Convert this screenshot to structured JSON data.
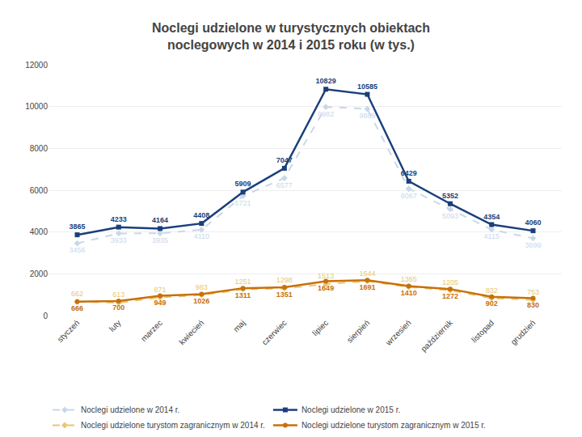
{
  "chart_data": {
    "type": "line",
    "title": "Noclegi udzielone w turystycznych obiektach\nnoclegowych w 2014 i 2015 roku (w tys.)",
    "categories": [
      "styczeń",
      "luty",
      "marzec",
      "kwiecień",
      "maj",
      "czerwiec",
      "lipiec",
      "sierpień",
      "wrzesień",
      "październik",
      "listopad",
      "grudzień"
    ],
    "series": [
      {
        "name": "Noclegi udzielone w 2014 r.",
        "color": "#c8d8ea",
        "line_style": "dashed",
        "marker": "diamond",
        "values": [
          3456,
          3933,
          3935,
          4110,
          5721,
          6577,
          9982,
          9889,
          6067,
          5093,
          4115,
          3699
        ]
      },
      {
        "name": "Noclegi udzielone w 2015 r.",
        "color": "#1a3f7a",
        "line_style": "solid",
        "marker": "square",
        "values": [
          3865,
          4233,
          4164,
          4408,
          5909,
          7047,
          10829,
          10585,
          6429,
          5352,
          4354,
          4060
        ]
      },
      {
        "name": "Noclegi udzielone turystom zagranicznym w 2014 r.",
        "color": "#e8c870",
        "line_style": "dashed",
        "marker": "diamond",
        "values": [
          662,
          613,
          871,
          983,
          1251,
          1298,
          1513,
          1644,
          1365,
          1205,
          832,
          753
        ]
      },
      {
        "name": "Noclegi udzielone turystom zagranicznym w 2015 r.",
        "color": "#c8700a",
        "line_style": "solid",
        "marker": "circle",
        "values": [
          666,
          700,
          949,
          1026,
          1311,
          1351,
          1649,
          1691,
          1410,
          1272,
          902,
          830
        ]
      }
    ],
    "ylim": [
      0,
      12000
    ],
    "yticks": [
      0,
      2000,
      4000,
      6000,
      8000,
      10000,
      12000
    ],
    "grid": true,
    "legend": "bottom",
    "data_labels": true
  }
}
